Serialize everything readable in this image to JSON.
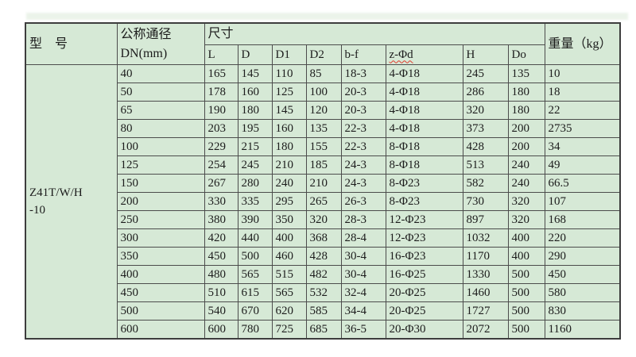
{
  "colors": {
    "page_bg": "#ffffff",
    "table_bg": "#d6e9d6",
    "outer_border": "#3d3d3d",
    "inner_border": "#4c4c4c",
    "text": "#1c1c1c",
    "squiggle_red": "#e23b2e",
    "artifact_band": "#dcead9"
  },
  "table": {
    "header": {
      "model": "型　号",
      "nominal_line1": "公称通径",
      "nominal_line2": "DN(mm)",
      "dimensions": "尺寸",
      "weight": "重量（kg）",
      "dim_columns": [
        "L",
        "D",
        "D1",
        "D2",
        "b-f",
        "z-Φd",
        "H",
        "Do"
      ]
    },
    "model": {
      "line1": "Z41T/W/H",
      "line2": "-10"
    },
    "rows": [
      {
        "dn": "40",
        "L": "165",
        "D": "145",
        "D1": "110",
        "D2": "85",
        "bf": "18-3",
        "z": "4-Φ18",
        "H": "245",
        "Do": "135",
        "weight": "10"
      },
      {
        "dn": "50",
        "L": "178",
        "D": "160",
        "D1": "125",
        "D2": "100",
        "bf": "20-3",
        "z": "4-Φ18",
        "H": "286",
        "Do": "180",
        "weight": "18"
      },
      {
        "dn": "65",
        "L": "190",
        "D": "180",
        "D1": "145",
        "D2": "120",
        "bf": "20-3",
        "z": "4-Φ18",
        "H": "320",
        "Do": "180",
        "weight": "22"
      },
      {
        "dn": "80",
        "L": "203",
        "D": "195",
        "D1": "160",
        "D2": "135",
        "bf": "22-3",
        "z": "4-Φ18",
        "H": "373",
        "Do": "200",
        "weight": "2735"
      },
      {
        "dn": "100",
        "L": "229",
        "D": "215",
        "D1": "180",
        "D2": "155",
        "bf": "22-3",
        "z": "8-Φ18",
        "H": "428",
        "Do": "200",
        "weight": "34"
      },
      {
        "dn": "125",
        "L": "254",
        "D": "245",
        "D1": "210",
        "D2": "185",
        "bf": "24-3",
        "z": "8-Φ18",
        "H": "513",
        "Do": "240",
        "weight": "49"
      },
      {
        "dn": "150",
        "L": "267",
        "D": "280",
        "D1": "240",
        "D2": "210",
        "bf": "24-3",
        "z": "8-Φ23",
        "H": "582",
        "Do": "240",
        "weight": "66.5"
      },
      {
        "dn": "200",
        "L": "330",
        "D": "335",
        "D1": "295",
        "D2": "265",
        "bf": "26-3",
        "z": "8-Φ23",
        "H": "730",
        "Do": "320",
        "weight": "107"
      },
      {
        "dn": "250",
        "L": "380",
        "D": "390",
        "D1": "350",
        "D2": "320",
        "bf": "28-3",
        "z": "12-Φ23",
        "H": "897",
        "Do": "320",
        "weight": "168"
      },
      {
        "dn": "300",
        "L": "420",
        "D": "440",
        "D1": "400",
        "D2": "368",
        "bf": "28-4",
        "z": "12-Φ23",
        "H": "1032",
        "Do": "400",
        "weight": "220"
      },
      {
        "dn": "350",
        "L": "450",
        "D": "500",
        "D1": "460",
        "D2": "428",
        "bf": "30-4",
        "z": "16-Φ23",
        "H": "1170",
        "Do": "400",
        "weight": "290"
      },
      {
        "dn": "400",
        "L": "480",
        "D": "565",
        "D1": "515",
        "D2": "482",
        "bf": "30-4",
        "z": "16-Φ25",
        "H": "1330",
        "Do": "500",
        "weight": "450"
      },
      {
        "dn": "450",
        "L": "510",
        "D": "615",
        "D1": "565",
        "D2": "532",
        "bf": "32-4",
        "z": "20-Φ25",
        "H": "1460",
        "Do": "500",
        "weight": "580"
      },
      {
        "dn": "500",
        "L": "540",
        "D": "670",
        "D1": "620",
        "D2": "585",
        "bf": "34-4",
        "z": "20-Φ25",
        "H": "1727",
        "Do": "500",
        "weight": "830"
      },
      {
        "dn": "600",
        "L": "600",
        "D": "780",
        "D1": "725",
        "D2": "685",
        "bf": "36-5",
        "z": "20-Φ30",
        "H": "2072",
        "Do": "500",
        "weight": "1160"
      }
    ]
  }
}
